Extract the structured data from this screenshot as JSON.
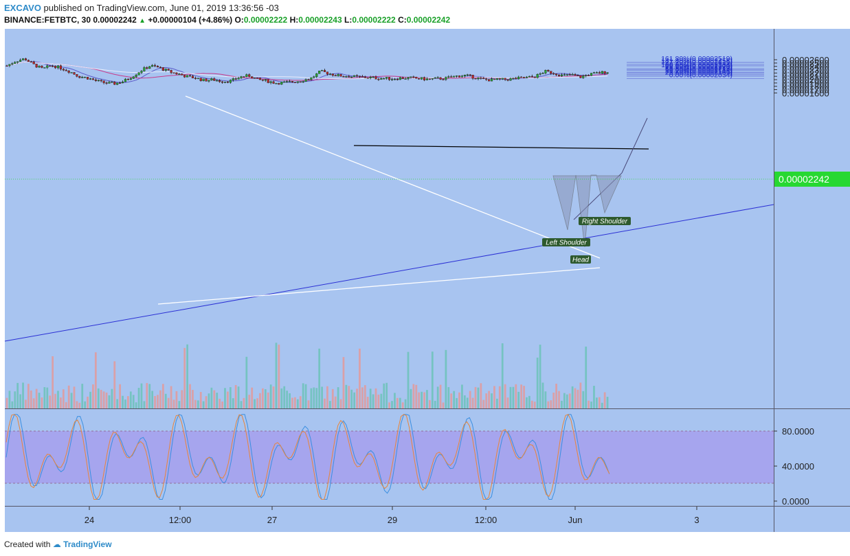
{
  "header": {
    "author": "EXCAVO",
    "published_text": " published on TradingView.com, June 01, 2019 13:36:56 -03",
    "symbol": "BINANCE:FETBTC, 30",
    "last_price": "0.00002242",
    "change_arrow": "▲",
    "change": "+0.00000104 (+4.86%)",
    "o_label": "O:",
    "o_value": "0.00002222",
    "h_label": "H:",
    "h_value": "0.00002243",
    "l_label": "L:",
    "l_value": "0.00002222",
    "c_label": "C:",
    "c_value": "0.00002242"
  },
  "footer": {
    "created_with": "Created with",
    "brand": "TradingView"
  },
  "colors": {
    "background": "#a8c4f0",
    "bull": "#27a833",
    "bear": "#b7282a",
    "rsi_band": "#a6a5ee",
    "fib_box": "#e3e562",
    "price_badge": "#27d832"
  },
  "chart_data": [
    {
      "type": "line",
      "title": "",
      "price_axis": {
        "ticks": [
          "0.00002600",
          "0.00002500",
          "0.00002400",
          "0.00002300",
          "0.00002200",
          "0.00002100",
          "0.00002000",
          "0.00001900",
          "0.00001800",
          "0.00001700",
          "0.00001600"
        ],
        "ylim": [
          1.555e-05,
          2.7e-05
        ],
        "current_price_label": "0.00002242"
      },
      "time_axis": {
        "ticks": [
          "24",
          "12:00",
          "27",
          "29",
          "12:00",
          "Jun",
          "3"
        ]
      },
      "series": [
        {
          "values": [
            2.42e-05,
            2.56e-05,
            2.63e-05,
            2.45e-05,
            2.32e-05,
            2.43e-05,
            2.35e-05,
            2.25e-05,
            2.1e-05,
            2.05e-05,
            1.96e-05,
            1.9e-05,
            1.88e-05,
            1.95e-05,
            2.1e-05,
            2.28e-05,
            2.42e-05,
            2.36e-05,
            2.25e-05,
            2.18e-05,
            2.1e-05,
            2.05e-05,
            1.98e-05,
            2e-05,
            1.95e-05,
            1.96e-05,
            2.08e-05,
            2.12e-05,
            2e-05,
            1.96e-05,
            1.9e-05,
            1.91e-05,
            1.94e-05,
            1.98e-05,
            2.05e-05,
            2.25e-05,
            2.18e-05,
            2.12e-05,
            2.11e-05,
            2.08e-05,
            2.07e-05,
            2.05e-05,
            2.04e-05,
            2.03e-05,
            2.05e-05,
            2.05e-05,
            2.03e-05,
            2.01e-05,
            2.03e-05,
            2.04e-05,
            2.1e-05,
            2.13e-05,
            2.08e-05,
            2.01e-05,
            1.99e-05,
            2e-05,
            2.01e-05,
            2.04e-05,
            2.06e-05,
            2.1e-05,
            2.25e-05,
            2.2e-05,
            2.12e-05,
            2.14e-05,
            2.08e-05,
            2.16e-05,
            2.2e-05,
            2.24e-05
          ]
        }
      ],
      "annotations": {
        "fib_levels": [
          {
            "label": "161.80%(0.00002519)",
            "value": 2.519e-05
          },
          {
            "label": "141.40%(0.00002458)",
            "value": 2.458e-05
          },
          {
            "label": "127.20%(0.00002415)",
            "value": 2.415e-05
          },
          {
            "label": "100.00%(0.00002334)",
            "value": 2.334e-05
          },
          {
            "label": "88.60%(0.00002300)",
            "value": 2.3e-05
          },
          {
            "label": "78.60%(0.00002270)",
            "value": 2.27e-05
          },
          {
            "label": "61.80%(0.00002219)",
            "value": 2.219e-05
          },
          {
            "label": "50.00%(0.00002184)",
            "value": 2.184e-05
          },
          {
            "label": "38.20%(0.00002148)",
            "value": 2.148e-05
          },
          {
            "label": "23.60%(0.00002105)",
            "value": 2.105e-05
          },
          {
            "label": "0.00%(0.00002034)",
            "value": 2.034e-05
          }
        ],
        "pattern_labels": [
          "Right Shoulder",
          "Left Shoulder",
          "Head"
        ]
      }
    },
    {
      "type": "line",
      "title": "",
      "rsi_axis": {
        "ticks": [
          "80.0000",
          "40.0000",
          "0.0000"
        ],
        "ylim": [
          -5,
          102
        ],
        "band": [
          20,
          80
        ]
      }
    }
  ]
}
